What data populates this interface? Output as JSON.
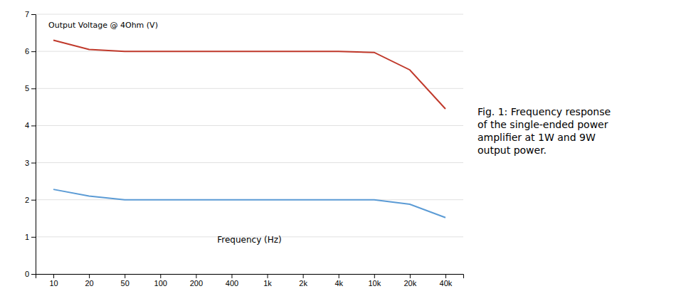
{
  "chart_data": {
    "type": "line",
    "xlabel": "Frequency (Hz)",
    "ylabel": "Output Voltage @ 4Ohm (V)",
    "categories": [
      "10",
      "20",
      "50",
      "100",
      "200",
      "400",
      "1k",
      "2k",
      "4k",
      "10k",
      "20k",
      "40k"
    ],
    "series": [
      {
        "color": "#c0392b",
        "values": [
          6.3,
          6.05,
          6.0,
          6.0,
          6.0,
          6.0,
          6.0,
          6.0,
          6.0,
          5.97,
          5.5,
          4.45
        ]
      },
      {
        "color": "#5b9bd5",
        "values": [
          2.28,
          2.1,
          2.0,
          2.0,
          2.0,
          2.0,
          2.0,
          2.0,
          2.0,
          2.0,
          1.88,
          1.52
        ]
      }
    ],
    "ylim": [
      0,
      7
    ],
    "yticks": [
      0,
      1,
      2,
      3,
      4,
      5,
      6,
      7
    ],
    "grid": true,
    "annotations": [
      "Fig. 1: Frequency response\nof the single-ended power\namplifier at 1W and 9W\noutput power."
    ]
  }
}
